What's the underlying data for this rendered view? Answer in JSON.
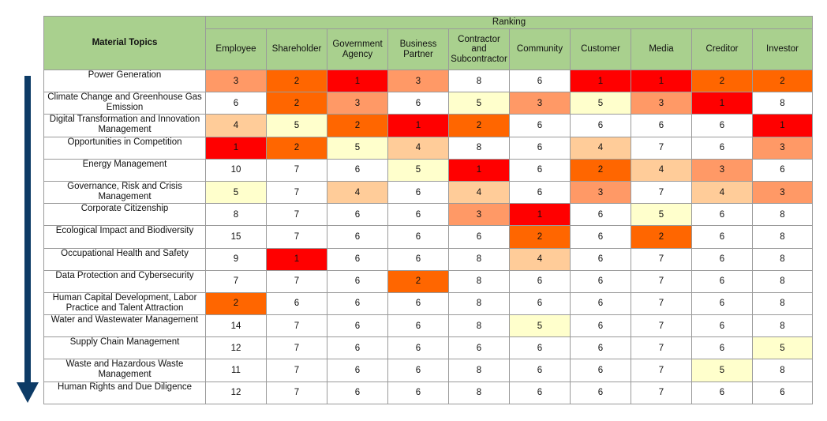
{
  "header": {
    "topics_label": "Material Topics",
    "ranking_label": "Ranking"
  },
  "stakeholders": [
    "Employee",
    "Shareholder",
    "Government Agency",
    "Business Partner",
    "Contractor and Subcontractor",
    "Community",
    "Customer",
    "Media",
    "Creditor",
    "Investor"
  ],
  "colors": {
    "1": "#ff0000",
    "2": "#ff6600",
    "3": "#ff9966",
    "4": "#ffcc99",
    "5": "#ffffcc",
    "header": "#a9d08e",
    "arrow": "#0d3b66"
  },
  "rows": [
    {
      "topic": "Power Generation",
      "values": [
        "3",
        "2",
        "1",
        "3",
        "8",
        "6",
        "1",
        "1",
        "2",
        "2"
      ]
    },
    {
      "topic": "Climate Change and Greenhouse Gas Emission",
      "values": [
        "6",
        "2",
        "3",
        "6",
        "5",
        "3",
        "5",
        "3",
        "1",
        "8"
      ]
    },
    {
      "topic": "Digital Transformation and Innovation Management",
      "values": [
        "4",
        "5",
        "2",
        "1",
        "2",
        "6",
        "6",
        "6",
        "6",
        "1"
      ]
    },
    {
      "topic": "Opportunities in Competition",
      "values": [
        "1",
        "2",
        "5",
        "4",
        "8",
        "6",
        "4",
        "7",
        "6",
        "3"
      ]
    },
    {
      "topic": "Energy Management",
      "values": [
        "10",
        "7",
        "6",
        "5",
        "1",
        "6",
        "2",
        "4",
        "3",
        "6"
      ]
    },
    {
      "topic": "Governance, Risk and Crisis Management",
      "values": [
        "5",
        "7",
        "4",
        "6",
        "4",
        "6",
        "3",
        "7",
        "4",
        "3"
      ]
    },
    {
      "topic": "Corporate Citizenship",
      "values": [
        "8",
        "7",
        "6",
        "6",
        "3",
        "1",
        "6",
        "5",
        "6",
        "8"
      ]
    },
    {
      "topic": "Ecological Impact and Biodiversity",
      "values": [
        "15",
        "7",
        "6",
        "6",
        "6",
        "2",
        "6",
        "2",
        "6",
        "8"
      ]
    },
    {
      "topic": "Occupational Health and Safety",
      "values": [
        "9",
        "1",
        "6",
        "6",
        "8",
        "4",
        "6",
        "7",
        "6",
        "8"
      ]
    },
    {
      "topic": "Data Protection and Cybersecurity",
      "values": [
        "7",
        "7",
        "6",
        "2",
        "8",
        "6",
        "6",
        "7",
        "6",
        "8"
      ]
    },
    {
      "topic": "Human Capital Development, Labor Practice and Talent Attraction",
      "values": [
        "2",
        "6",
        "6",
        "6",
        "8",
        "6",
        "6",
        "7",
        "6",
        "8"
      ]
    },
    {
      "topic": "Water and Wastewater Management",
      "values": [
        "14",
        "7",
        "6",
        "6",
        "8",
        "5",
        "6",
        "7",
        "6",
        "8"
      ]
    },
    {
      "topic": "Supply Chain Management",
      "values": [
        "12",
        "7",
        "6",
        "6",
        "6",
        "6",
        "6",
        "7",
        "6",
        "5"
      ]
    },
    {
      "topic": "Waste and Hazardous Waste Management",
      "values": [
        "11",
        "7",
        "6",
        "6",
        "8",
        "6",
        "6",
        "7",
        "5",
        "8"
      ]
    },
    {
      "topic": "Human Rights and Due Diligence",
      "values": [
        "12",
        "7",
        "6",
        "6",
        "8",
        "6",
        "6",
        "7",
        "6",
        "6"
      ]
    }
  ]
}
